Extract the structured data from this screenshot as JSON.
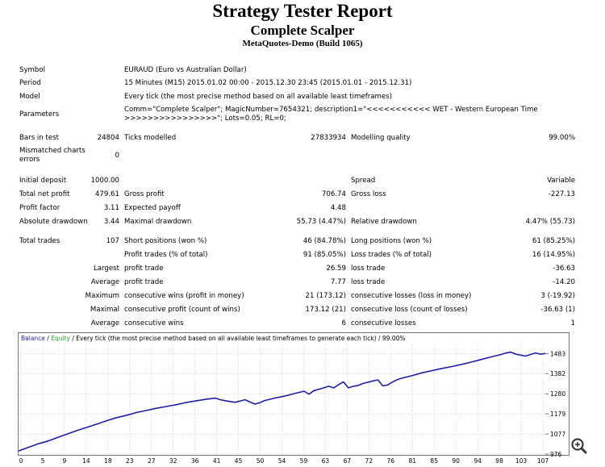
{
  "report": {
    "title": "Strategy Tester Report",
    "subtitle": "Complete Scalper",
    "build": "MetaQuotes-Demo (Build 1065)"
  },
  "info": {
    "symbol_label": "Symbol",
    "symbol_value": "EURAUD (Euro vs Australian Dollar)",
    "period_label": "Period",
    "period_value": "15 Minutes (M15) 2015.01.02 00:00 - 2015.12.30 23:45 (2015.01.01 - 2015.12.31)",
    "model_label": "Model",
    "model_value": "Every tick (the most precise method based on all available least timeframes)",
    "params_label": "Parameters",
    "params_line1": "Comm=\"Complete Scalper\"; MagicNumber=7654321; description1=\"<<<<<<<<<<< WET - Western European Time",
    "params_line2": ">>>>>>>>>>>>>>>>\"; Lots=0.05; RL=0;"
  },
  "stats": {
    "bars_label": "Bars in test",
    "bars_value": "24804",
    "ticks_label": "Ticks modelled",
    "ticks_value": "27833934",
    "quality_label": "Modelling quality",
    "quality_value": "99.00%",
    "mismatch_label1": "Mismatched charts",
    "mismatch_label2": "errors",
    "mismatch_value": "0",
    "deposit_label": "Initial deposit",
    "deposit_value": "1000.00",
    "spread_label": "Spread",
    "spread_value": "Variable",
    "netprofit_label": "Total net profit",
    "netprofit_value": "479.61",
    "grossprofit_label": "Gross profit",
    "grossprofit_value": "706.74",
    "grossloss_label": "Gross loss",
    "grossloss_value": "-227.13",
    "pf_label": "Profit factor",
    "pf_value": "3.11",
    "payoff_label": "Expected payoff",
    "payoff_value": "4.48",
    "absdd_label": "Absolute drawdown",
    "absdd_value": "3.44",
    "maxdd_label": "Maximal drawdown",
    "maxdd_value": "55.73 (4.47%)",
    "reldd_label": "Relative drawdown",
    "reldd_value": "4.47% (55.73)",
    "trades_label": "Total trades",
    "trades_value": "107",
    "short_label": "Short positions (won %)",
    "short_value": "46 (84.78%)",
    "long_label": "Long positions (won %)",
    "long_value": "61 (85.25%)",
    "ptrades_label": "Profit trades (% of total)",
    "ptrades_value": "91 (85.05%)",
    "ltrades_label": "Loss trades (% of total)",
    "ltrades_value": "16 (14.95%)",
    "largest_label": "Largest",
    "lpt_label": "profit trade",
    "lpt_value": "26.59",
    "llt_label": "loss trade",
    "llt_value": "-36.63",
    "average_label": "Average",
    "apt_label": "profit trade",
    "apt_value": "7.77",
    "alt_label": "loss trade",
    "alt_value": "-14.20",
    "maximum_label": "Maximum",
    "mcw_label": "consecutive wins (profit in money)",
    "mcw_value": "21 (173.12)",
    "mcl_label": "consecutive losses (loss in money)",
    "mcl_value": "3 (-19.92)",
    "maximal_label": "Maximal",
    "mcp_label": "consecutive profit (count of wins)",
    "mcp_value": "173.12 (21)",
    "mcls_label": "consecutive loss (count of losses)",
    "mcls_value": "-36.63 (1)",
    "average2_label": "Average",
    "acw_label": "consecutive wins",
    "acw_value": "6",
    "acl_label": "consecutive losses",
    "acl_value": "1"
  },
  "chart_data": {
    "type": "line",
    "legend": {
      "balance": "Balance",
      "sep": " / ",
      "equity": "Equity",
      "rest": " / Every tick (the most precise method based on all available least timeframes to generate each tick) / 99.00%"
    },
    "x_ticks": [
      "0",
      "5",
      "9",
      "14",
      "18",
      "23",
      "27",
      "32",
      "36",
      "41",
      "45",
      "50",
      "54",
      "59",
      "63",
      "67",
      "72",
      "76",
      "81",
      "85",
      "90",
      "94",
      "98",
      "103",
      "107"
    ],
    "y_ticks": [
      "1483",
      "1382",
      "1280",
      "1179",
      "1077",
      "976"
    ],
    "ylim": [
      976,
      1529
    ],
    "xlim": [
      0,
      107
    ],
    "colors": {
      "balance": "#1f1fa8",
      "equity": "#2ca52c",
      "grid": "#b0b0b0"
    },
    "series": [
      {
        "name": "Balance",
        "x": [
          0,
          2,
          4,
          6,
          8,
          10,
          12,
          14,
          16,
          18,
          20,
          22,
          24,
          26,
          28,
          30,
          32,
          34,
          36,
          38,
          40,
          41,
          42,
          44,
          46,
          48,
          49,
          50,
          52,
          54,
          56,
          58,
          59,
          60,
          62,
          63,
          64,
          65,
          66,
          67,
          68,
          69,
          70,
          72,
          73,
          74,
          75,
          76,
          77,
          78,
          80,
          82,
          84,
          86,
          88,
          90,
          92,
          94,
          96,
          98,
          99,
          100,
          101,
          102,
          103,
          104,
          105,
          106,
          107
        ],
        "y": [
          992,
          1010,
          1028,
          1042,
          1060,
          1078,
          1096,
          1112,
          1128,
          1145,
          1160,
          1172,
          1186,
          1196,
          1207,
          1216,
          1225,
          1236,
          1244,
          1252,
          1258,
          1250,
          1245,
          1237,
          1250,
          1228,
          1235,
          1246,
          1258,
          1268,
          1281,
          1293,
          1278,
          1296,
          1310,
          1318,
          1310,
          1326,
          1340,
          1310,
          1318,
          1322,
          1332,
          1345,
          1350,
          1320,
          1325,
          1340,
          1352,
          1360,
          1372,
          1386,
          1397,
          1408,
          1417,
          1428,
          1440,
          1453,
          1466,
          1478,
          1486,
          1490,
          1480,
          1475,
          1470,
          1478,
          1486,
          1480,
          1483
        ]
      }
    ]
  }
}
